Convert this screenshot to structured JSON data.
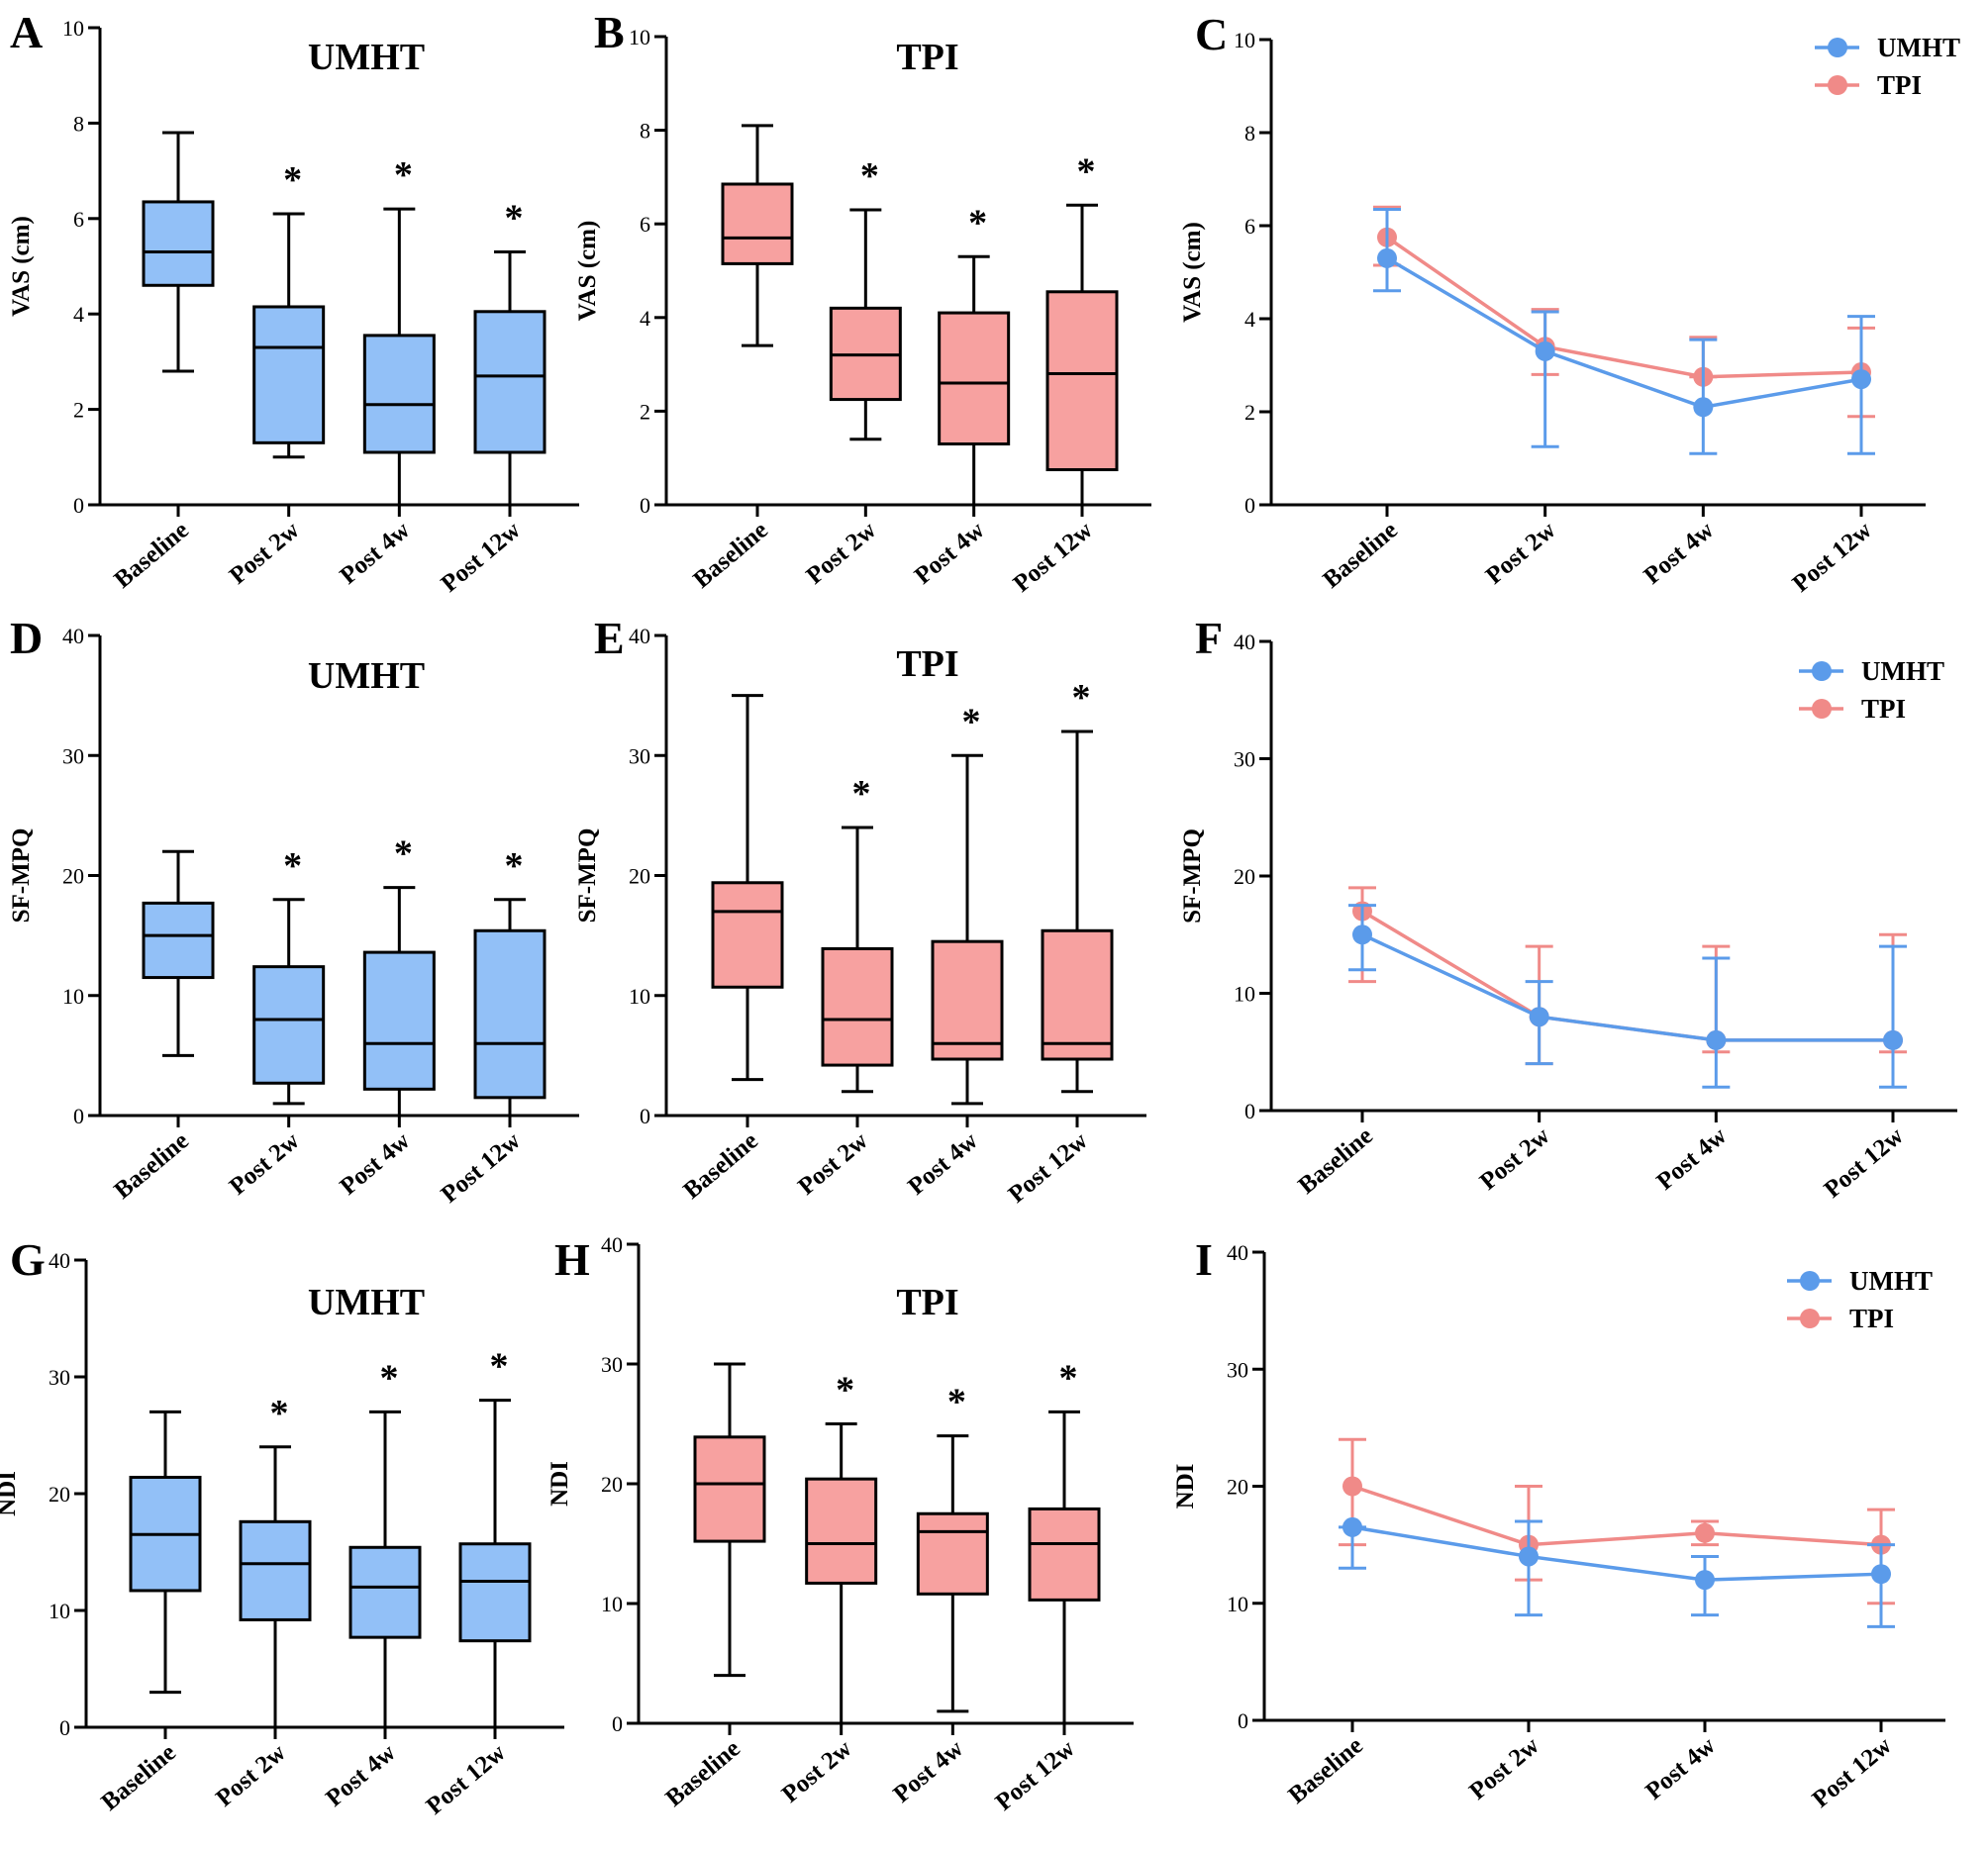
{
  "colors": {
    "umht_fill": "#92C0F7",
    "umht_line": "#5B9BEA",
    "tpi_fill": "#F7A1A0",
    "tpi_line": "#F08A88",
    "axis": "#000000"
  },
  "chart_data": [
    {
      "letter": "A",
      "type": "box",
      "title": "UMHT",
      "ylabel": "VAS (cm)",
      "ylim": [
        0,
        10
      ],
      "yticks": [
        0,
        2,
        4,
        6,
        8,
        10
      ],
      "group": "umht",
      "categories": [
        "Baseline",
        "Post 2w",
        "Post 4w",
        "Post 12w"
      ],
      "boxes": [
        {
          "min": 2.8,
          "q1": 4.6,
          "median": 5.3,
          "q3": 6.35,
          "max": 7.8,
          "sig": ""
        },
        {
          "min": 1.0,
          "q1": 1.3,
          "median": 3.3,
          "q3": 4.15,
          "max": 6.1,
          "sig": "*"
        },
        {
          "min": 0.0,
          "q1": 1.1,
          "median": 2.1,
          "q3": 3.55,
          "max": 6.2,
          "sig": "*"
        },
        {
          "min": 0.0,
          "q1": 1.1,
          "median": 2.7,
          "q3": 4.05,
          "max": 5.3,
          "sig": "*"
        }
      ]
    },
    {
      "letter": "B",
      "type": "box",
      "title": "TPI",
      "ylabel": "VAS (cm)",
      "ylim": [
        0,
        10
      ],
      "yticks": [
        0,
        2,
        4,
        6,
        8,
        10
      ],
      "group": "tpi",
      "categories": [
        "Baseline",
        "Post 2w",
        "Post 4w",
        "Post 12w"
      ],
      "boxes": [
        {
          "min": 3.4,
          "q1": 5.15,
          "median": 5.7,
          "q3": 6.85,
          "max": 8.1,
          "sig": ""
        },
        {
          "min": 1.4,
          "q1": 2.25,
          "median": 3.2,
          "q3": 4.2,
          "max": 6.3,
          "sig": "*"
        },
        {
          "min": 0.0,
          "q1": 1.3,
          "median": 2.6,
          "q3": 4.1,
          "max": 5.3,
          "sig": "*"
        },
        {
          "min": 0.0,
          "q1": 0.75,
          "median": 2.8,
          "q3": 4.55,
          "max": 6.4,
          "sig": "*"
        }
      ]
    },
    {
      "letter": "C",
      "type": "line",
      "ylabel": "VAS (cm)",
      "ylim": [
        0,
        10
      ],
      "yticks": [
        0,
        2,
        4,
        6,
        8,
        10
      ],
      "categories": [
        "Baseline",
        "Post 2w",
        "Post 4w",
        "Post 12w"
      ],
      "legend": [
        "UMHT",
        "TPI"
      ],
      "series": [
        {
          "name": "UMHT",
          "group": "umht",
          "values": [
            5.3,
            3.3,
            2.1,
            2.7
          ],
          "lower": [
            4.6,
            1.25,
            1.1,
            1.1
          ],
          "upper": [
            6.35,
            4.15,
            3.55,
            4.05
          ]
        },
        {
          "name": "TPI",
          "group": "tpi",
          "values": [
            5.75,
            3.4,
            2.75,
            2.85
          ],
          "lower": [
            5.15,
            2.8,
            2.75,
            1.9
          ],
          "upper": [
            6.4,
            4.2,
            3.6,
            3.8
          ]
        }
      ]
    },
    {
      "letter": "D",
      "type": "box",
      "title": "UMHT",
      "ylabel": "SF-MPQ",
      "ylim": [
        0,
        40
      ],
      "yticks": [
        0,
        10,
        20,
        30,
        40
      ],
      "group": "umht",
      "categories": [
        "Baseline",
        "Post 2w",
        "Post 4w",
        "Post 12w"
      ],
      "boxes": [
        {
          "min": 5,
          "q1": 11.5,
          "median": 15,
          "q3": 17.7,
          "max": 22,
          "sig": ""
        },
        {
          "min": 1,
          "q1": 2.7,
          "median": 8,
          "q3": 12.4,
          "max": 18,
          "sig": "*"
        },
        {
          "min": 0,
          "q1": 2.2,
          "median": 6,
          "q3": 13.6,
          "max": 19,
          "sig": "*"
        },
        {
          "min": 0,
          "q1": 1.5,
          "median": 6,
          "q3": 15.4,
          "max": 18,
          "sig": "*"
        }
      ]
    },
    {
      "letter": "E",
      "type": "box",
      "title": "TPI",
      "ylabel": "SF-MPQ",
      "ylim": [
        0,
        40
      ],
      "yticks": [
        0,
        10,
        20,
        30,
        40
      ],
      "group": "tpi",
      "categories": [
        "Baseline",
        "Post 2w",
        "Post 4w",
        "Post 12w"
      ],
      "boxes": [
        {
          "min": 3,
          "q1": 10.7,
          "median": 17,
          "q3": 19.4,
          "max": 35,
          "sig": ""
        },
        {
          "min": 2,
          "q1": 4.2,
          "median": 8,
          "q3": 13.9,
          "max": 24,
          "sig": "*"
        },
        {
          "min": 1,
          "q1": 4.7,
          "median": 6,
          "q3": 14.5,
          "max": 30,
          "sig": "*"
        },
        {
          "min": 2,
          "q1": 4.7,
          "median": 6,
          "q3": 15.4,
          "max": 32,
          "sig": "*"
        }
      ]
    },
    {
      "letter": "F",
      "type": "line",
      "ylabel": "SF-MPQ",
      "ylim": [
        0,
        40
      ],
      "yticks": [
        0,
        10,
        20,
        30,
        40
      ],
      "categories": [
        "Baseline",
        "Post 2w",
        "Post 4w",
        "Post 12w"
      ],
      "legend": [
        "UMHT",
        "TPI"
      ],
      "series": [
        {
          "name": "UMHT",
          "group": "umht",
          "values": [
            15,
            8,
            6,
            6
          ],
          "lower": [
            12,
            4,
            2,
            2
          ],
          "upper": [
            17.5,
            11,
            13,
            14
          ]
        },
        {
          "name": "TPI",
          "group": "tpi",
          "values": [
            17,
            8,
            6,
            6
          ],
          "lower": [
            11,
            4,
            5,
            5
          ],
          "upper": [
            19,
            14,
            14,
            15
          ]
        }
      ]
    },
    {
      "letter": "G",
      "type": "box",
      "title": "UMHT",
      "ylabel": "NDI",
      "ylim": [
        0,
        40
      ],
      "yticks": [
        0,
        10,
        20,
        30,
        40
      ],
      "group": "umht",
      "categories": [
        "Baseline",
        "Post 2w",
        "Post 4w",
        "Post 12w"
      ],
      "boxes": [
        {
          "min": 3,
          "q1": 11.7,
          "median": 16.5,
          "q3": 21.4,
          "max": 27,
          "sig": ""
        },
        {
          "min": 0,
          "q1": 9.2,
          "median": 14,
          "q3": 17.6,
          "max": 24,
          "sig": "*"
        },
        {
          "min": 0,
          "q1": 7.7,
          "median": 12,
          "q3": 15.4,
          "max": 27,
          "sig": "*"
        },
        {
          "min": 0,
          "q1": 7.4,
          "median": 12.5,
          "q3": 15.7,
          "max": 28,
          "sig": "*"
        }
      ]
    },
    {
      "letter": "H",
      "type": "box",
      "title": "TPI",
      "ylabel": "NDI",
      "ylim": [
        0,
        40
      ],
      "yticks": [
        0,
        10,
        20,
        30,
        40
      ],
      "group": "tpi",
      "categories": [
        "Baseline",
        "Post 2w",
        "Post 4w",
        "Post 12w"
      ],
      "boxes": [
        {
          "min": 4,
          "q1": 15.2,
          "median": 20,
          "q3": 23.9,
          "max": 30,
          "sig": ""
        },
        {
          "min": 0,
          "q1": 11.7,
          "median": 15,
          "q3": 20.4,
          "max": 25,
          "sig": "*"
        },
        {
          "min": 1,
          "q1": 10.8,
          "median": 16,
          "q3": 17.5,
          "max": 24,
          "sig": "*"
        },
        {
          "min": 0,
          "q1": 10.3,
          "median": 15,
          "q3": 17.9,
          "max": 26,
          "sig": "*"
        }
      ]
    },
    {
      "letter": "I",
      "type": "line",
      "ylabel": "NDI",
      "ylim": [
        0,
        40
      ],
      "yticks": [
        0,
        10,
        20,
        30,
        40
      ],
      "categories": [
        "Baseline",
        "Post 2w",
        "Post 4w",
        "Post 12w"
      ],
      "legend": [
        "UMHT",
        "TPI"
      ],
      "series": [
        {
          "name": "UMHT",
          "group": "umht",
          "values": [
            16.5,
            14,
            12,
            12.5
          ],
          "lower": [
            13,
            9,
            9,
            8
          ],
          "upper": [
            16.5,
            17,
            14,
            15
          ]
        },
        {
          "name": "TPI",
          "group": "tpi",
          "values": [
            20,
            15,
            16,
            15
          ],
          "lower": [
            15,
            12,
            15,
            10
          ],
          "upper": [
            24,
            20,
            17,
            18
          ]
        }
      ]
    }
  ]
}
